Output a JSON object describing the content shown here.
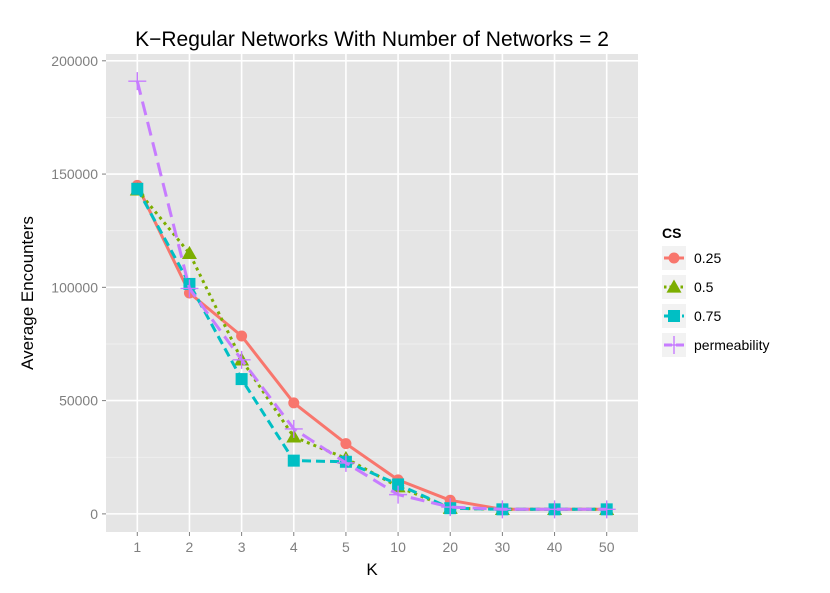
{
  "chart_data": {
    "type": "line",
    "title": "K−Regular Networks With Number of Networks = 2",
    "xlabel": "K",
    "ylabel": "Average Encounters",
    "categories": [
      "1",
      "2",
      "3",
      "4",
      "5",
      "10",
      "20",
      "30",
      "40",
      "50"
    ],
    "yticks": [
      0,
      50000,
      100000,
      150000,
      200000
    ],
    "ytick_labels": [
      "0",
      "50000",
      "100000",
      "150000",
      "200000"
    ],
    "ylim": [
      -8000,
      203000
    ],
    "grid": true,
    "legend_title": "CS",
    "legend_position": "right",
    "series": [
      {
        "name": "0.25",
        "color": "#F8766D",
        "marker": "circle",
        "dash": "solid",
        "values": [
          145000,
          97500,
          78500,
          49000,
          31000,
          15000,
          6000,
          2000,
          2000,
          2000
        ]
      },
      {
        "name": "0.5",
        "color": "#7CAE00",
        "marker": "triangle",
        "dash": "dotted",
        "values": [
          143000,
          115000,
          68000,
          34000,
          24500,
          12000,
          2500,
          2000,
          2000,
          2000
        ]
      },
      {
        "name": "0.75",
        "color": "#00BFC4",
        "marker": "square",
        "dash": "dashed",
        "values": [
          143500,
          101500,
          59500,
          23500,
          23000,
          13000,
          2500,
          2000,
          2000,
          2000
        ]
      },
      {
        "name": "permeability",
        "color": "#C77CFF",
        "marker": "cross",
        "dash": "longdash",
        "values": [
          191000,
          99500,
          68000,
          37500,
          22500,
          8500,
          3000,
          2000,
          2000,
          2000
        ]
      }
    ]
  }
}
